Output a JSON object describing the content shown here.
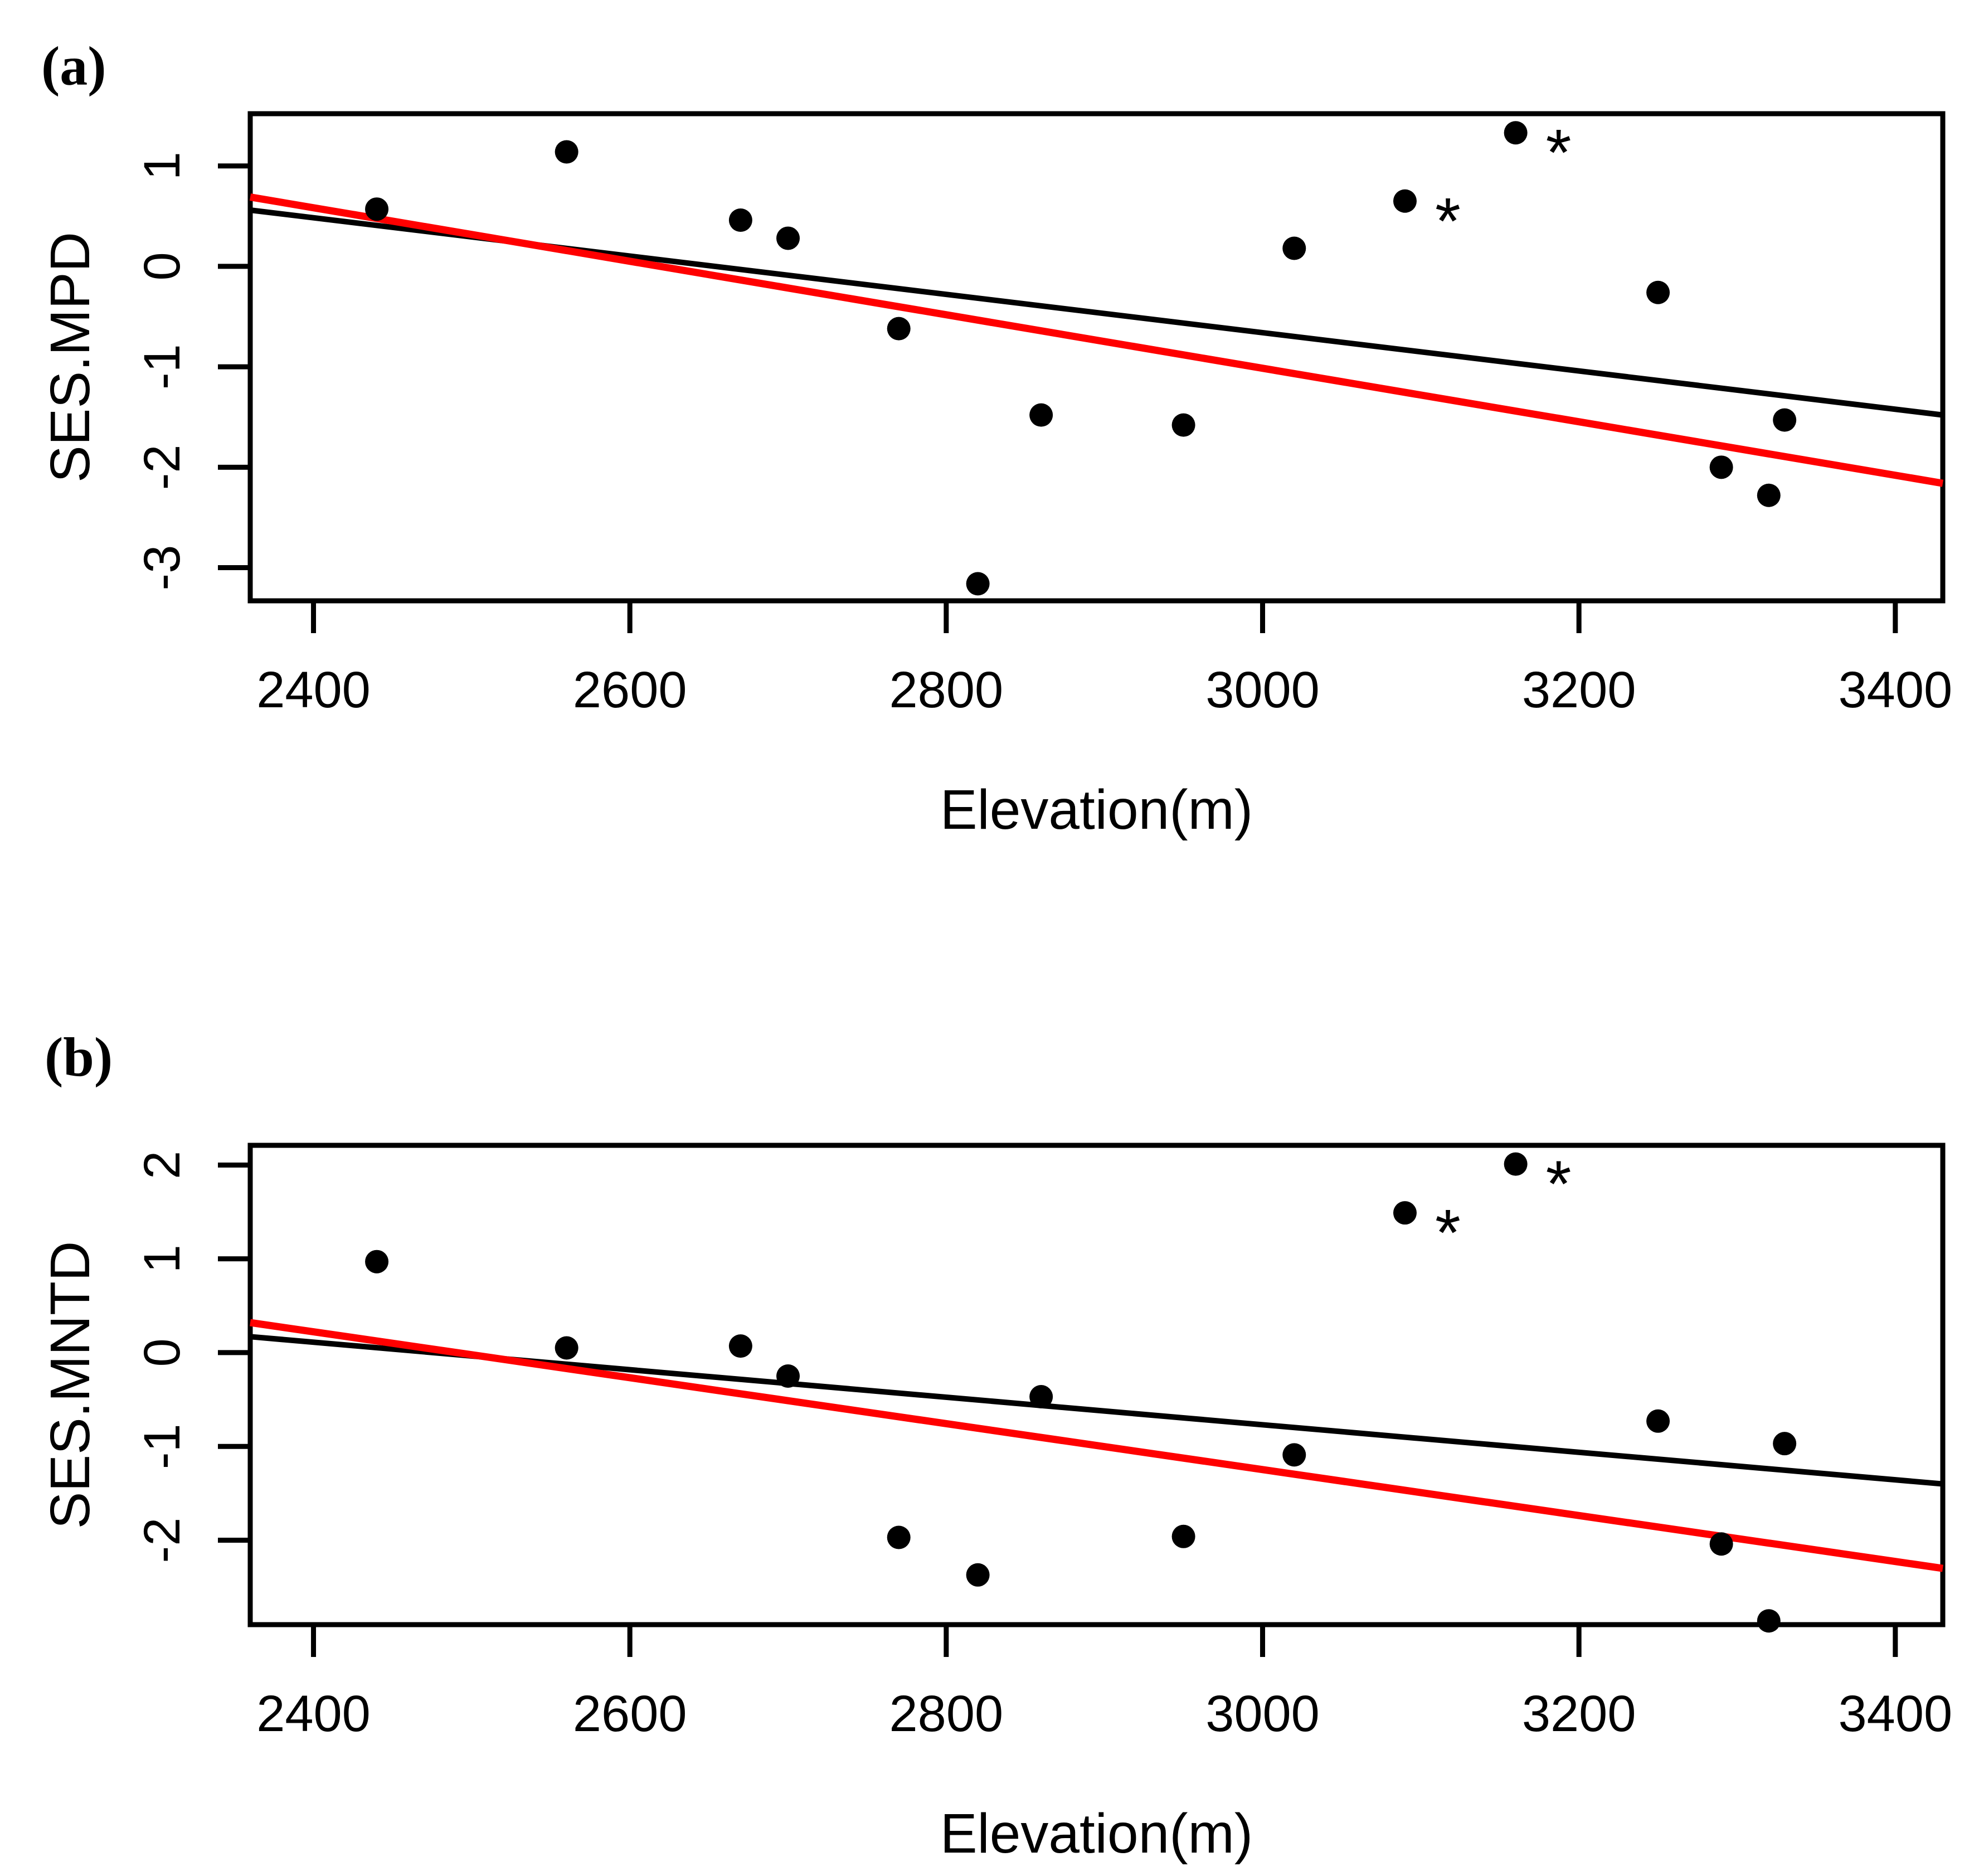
{
  "figure": {
    "background": "#ffffff",
    "point_color": "#000000",
    "observed_line_color": "#000000",
    "null_line_color": "#ff0000",
    "significance_marker": "*"
  },
  "chart_data": [
    {
      "type": "scatter",
      "panel_label": "(a)",
      "xlabel": "Elevation(m)",
      "ylabel": "SES.MPD",
      "xlim": [
        2360,
        3430
      ],
      "ylim": [
        -3.33,
        1.52
      ],
      "x_ticks": [
        2400,
        2600,
        2800,
        3000,
        3200,
        3400
      ],
      "y_ticks": [
        1,
        0,
        -1,
        -2,
        -3
      ],
      "grid": false,
      "legend": "none",
      "points": [
        {
          "x": 2440,
          "y": 0.57,
          "starred": false
        },
        {
          "x": 2560,
          "y": 1.14,
          "starred": false
        },
        {
          "x": 2670,
          "y": 0.46,
          "starred": false
        },
        {
          "x": 2700,
          "y": 0.28,
          "starred": false
        },
        {
          "x": 2770,
          "y": -0.62,
          "starred": false
        },
        {
          "x": 2820,
          "y": -3.16,
          "starred": false
        },
        {
          "x": 2860,
          "y": -1.48,
          "starred": false
        },
        {
          "x": 2950,
          "y": -1.58,
          "starred": false
        },
        {
          "x": 3020,
          "y": 0.18,
          "starred": false
        },
        {
          "x": 3090,
          "y": 0.65,
          "starred": true
        },
        {
          "x": 3160,
          "y": 1.33,
          "starred": true
        },
        {
          "x": 3250,
          "y": -0.26,
          "starred": false
        },
        {
          "x": 3290,
          "y": -2.0,
          "starred": false
        },
        {
          "x": 3320,
          "y": -2.28,
          "starred": false
        },
        {
          "x": 3330,
          "y": -1.53,
          "starred": false
        }
      ],
      "lines": [
        {
          "name": "observed-regression",
          "color": "#000000",
          "x1": 2360,
          "y1": 0.56,
          "x2": 3430,
          "y2": -1.48
        },
        {
          "name": "null-expectation-regression",
          "color": "#ff0000",
          "x1": 2360,
          "y1": 0.69,
          "x2": 3430,
          "y2": -2.16
        }
      ]
    },
    {
      "type": "scatter",
      "panel_label": "(b)",
      "xlabel": "Elevation(m)",
      "ylabel": "SES.MNTD",
      "xlim": [
        2360,
        3430
      ],
      "ylim": [
        -2.9,
        2.21
      ],
      "x_ticks": [
        2400,
        2600,
        2800,
        3000,
        3200,
        3400
      ],
      "y_ticks": [
        2,
        1,
        0,
        -1,
        -2
      ],
      "grid": false,
      "legend": "none",
      "points": [
        {
          "x": 2440,
          "y": 0.97,
          "starred": false
        },
        {
          "x": 2560,
          "y": 0.05,
          "starred": false
        },
        {
          "x": 2670,
          "y": 0.07,
          "starred": false
        },
        {
          "x": 2700,
          "y": -0.25,
          "starred": false
        },
        {
          "x": 2770,
          "y": -1.97,
          "starred": false
        },
        {
          "x": 2820,
          "y": -2.37,
          "starred": false
        },
        {
          "x": 2860,
          "y": -0.47,
          "starred": false
        },
        {
          "x": 2950,
          "y": -1.96,
          "starred": false
        },
        {
          "x": 3020,
          "y": -1.09,
          "starred": false
        },
        {
          "x": 3090,
          "y": 1.49,
          "starred": true
        },
        {
          "x": 3160,
          "y": 2.01,
          "starred": true
        },
        {
          "x": 3250,
          "y": -0.73,
          "starred": false
        },
        {
          "x": 3290,
          "y": -2.04,
          "starred": false
        },
        {
          "x": 3320,
          "y": -2.86,
          "starred": false
        },
        {
          "x": 3330,
          "y": -0.97,
          "starred": false
        }
      ],
      "lines": [
        {
          "name": "observed-regression",
          "color": "#000000",
          "x1": 2360,
          "y1": 0.17,
          "x2": 3430,
          "y2": -1.4
        },
        {
          "name": "null-expectation-regression",
          "color": "#ff0000",
          "x1": 2360,
          "y1": 0.32,
          "x2": 3430,
          "y2": -2.3
        }
      ]
    }
  ]
}
